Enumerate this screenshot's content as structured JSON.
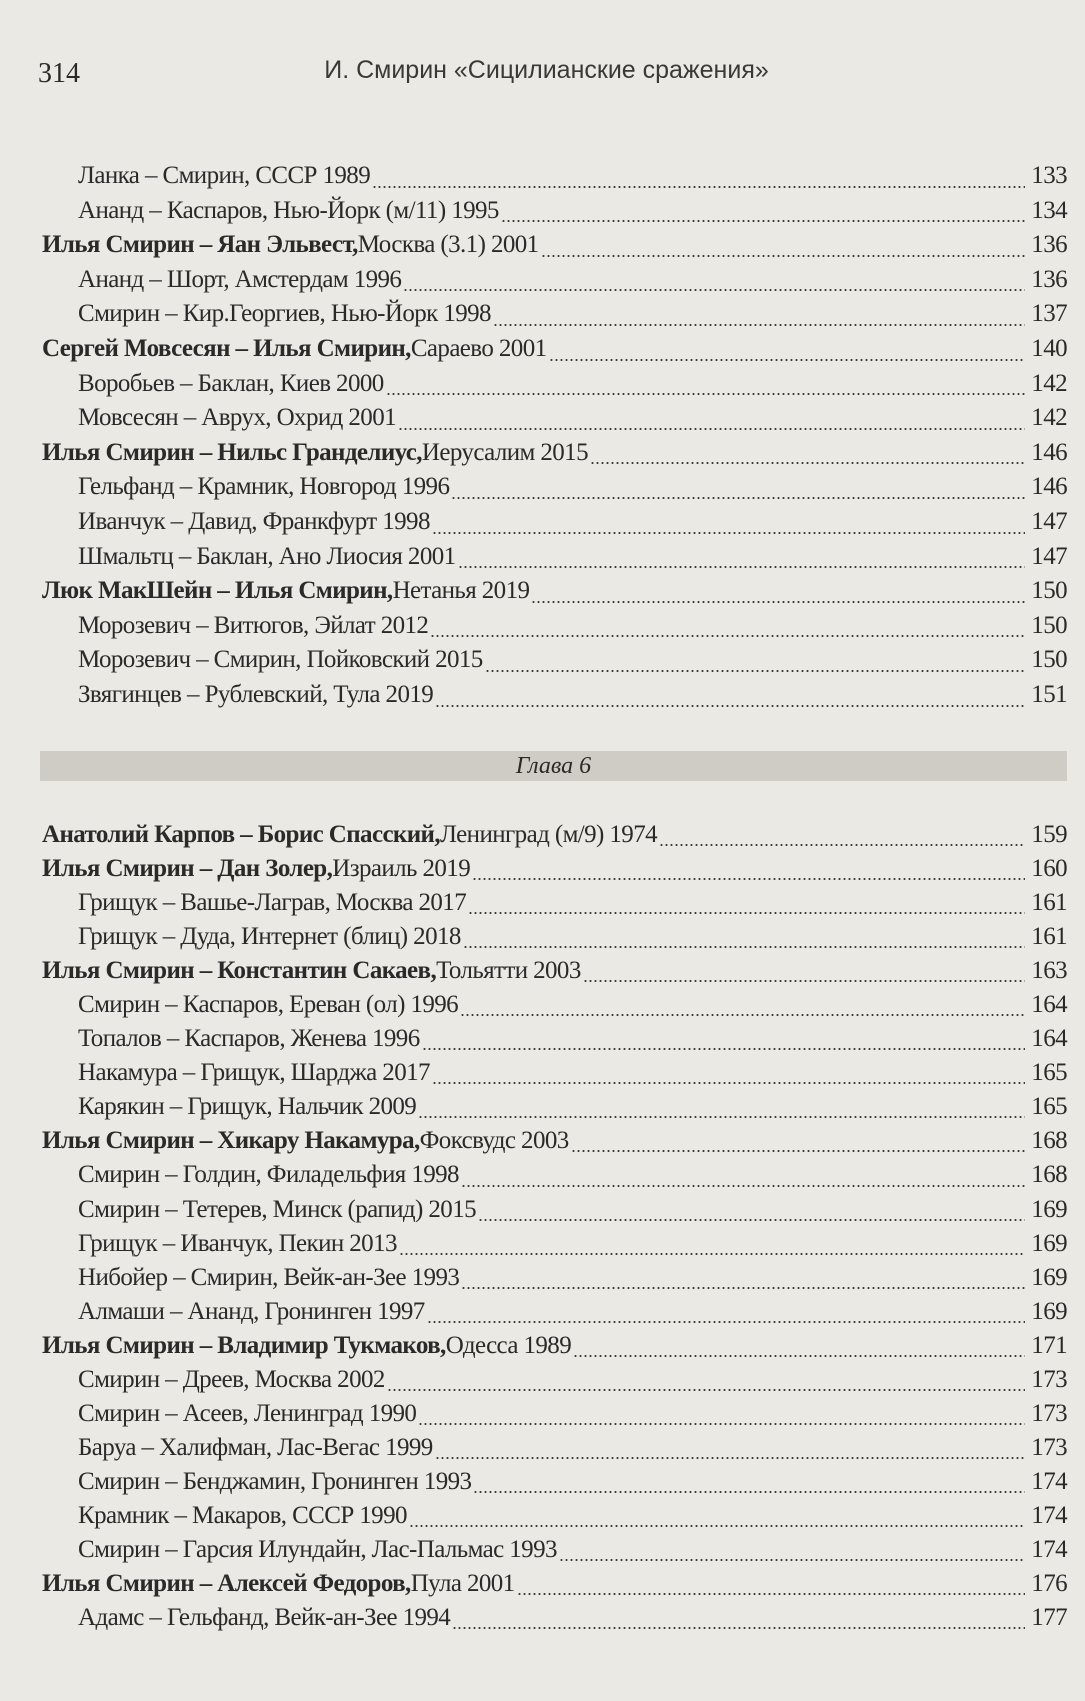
{
  "header": {
    "page_number": "314",
    "running_title": "И. Смирин «Сицилианские сражения»"
  },
  "block1": [
    {
      "text": "Ланка – Смирин, СССР 1989",
      "page": "133"
    },
    {
      "text": "Ананд – Каспаров, Нью-Йорк (м/11) 1995",
      "page": "134"
    },
    {
      "bold": "Илья Смирин – Яан Эльвест,",
      "text": " Москва (3.1) 2001",
      "page": "136"
    },
    {
      "text": "Ананд – Шорт, Амстердам 1996",
      "page": "136"
    },
    {
      "text": "Смирин – Кир.Георгиев, Нью-Йорк 1998",
      "page": "137"
    },
    {
      "bold": "Сергей Мовсесян – Илья Смирин,",
      "text": " Сараево 2001",
      "page": "140"
    },
    {
      "text": "Воробьев – Баклан, Киев 2000",
      "page": "142"
    },
    {
      "text": "Мовсесян – Аврух, Охрид 2001",
      "page": "142"
    },
    {
      "bold": "Илья Смирин – Нильс Гранделиус,",
      "text": " Иерусалим 2015",
      "page": "146"
    },
    {
      "text": "Гельфанд – Крамник, Новгород 1996",
      "page": "146"
    },
    {
      "text": "Иванчук – Давид, Франкфурт 1998",
      "page": "147"
    },
    {
      "text": "Шмальтц – Баклан, Ано Лиосия 2001",
      "page": "147"
    },
    {
      "bold": "Люк МакШейн – Илья Смирин,",
      "text": " Нетанья 2019",
      "page": "150"
    },
    {
      "text": "Морозевич – Витюгов, Эйлат 2012",
      "page": "150"
    },
    {
      "text": "Морозевич – Смирин, Пойковский 2015",
      "page": "150"
    },
    {
      "text": "Звягинцев – Рублевский, Тула 2019",
      "page": "151"
    }
  ],
  "chapter": "Глава 6",
  "block2": [
    {
      "bold": "Анатолий Карпов – Борис Спасский,",
      "text": " Ленинград (м/9) 1974",
      "page": "159"
    },
    {
      "bold": "Илья Смирин – Дан Золер,",
      "text": " Израиль 2019",
      "page": "160"
    },
    {
      "text": "Грищук – Вашье-Лаграв, Москва 2017",
      "page": "161"
    },
    {
      "text": "Грищук – Дуда, Интернет (блиц) 2018",
      "page": "161"
    },
    {
      "bold": "Илья Смирин – Константин Сакаев,",
      "text": " Тольятти 2003",
      "page": "163"
    },
    {
      "text": "Смирин – Каспаров, Ереван (ол) 1996",
      "page": "164"
    },
    {
      "text": "Топалов – Каспаров, Женева 1996",
      "page": "164"
    },
    {
      "text": "Накамура – Грищук, Шарджа 2017",
      "page": "165"
    },
    {
      "text": "Карякин – Грищук, Нальчик 2009",
      "page": "165"
    },
    {
      "bold": "Илья Смирин – Хикару Накамура,",
      "text": " Фоксвудс 2003",
      "page": "168"
    },
    {
      "text": "Смирин – Голдин, Филадельфия 1998",
      "page": "168"
    },
    {
      "text": "Смирин – Тетерев, Минск (рапид) 2015",
      "page": "169"
    },
    {
      "text": "Грищук – Иванчук, Пекин 2013",
      "page": "169"
    },
    {
      "text": "Нибойер – Смирин, Вейк-ан-Зее 1993",
      "page": "169"
    },
    {
      "text": "Алмаши – Ананд, Гронинген 1997",
      "page": "169"
    },
    {
      "bold": "Илья Смирин – Владимир Тукмаков,",
      "text": " Одесса 1989",
      "page": "171"
    },
    {
      "text": "Смирин – Дреев, Москва 2002",
      "page": "173"
    },
    {
      "text": "Смирин – Асеев, Ленинград 1990",
      "page": "173"
    },
    {
      "text": "Баруа – Халифман, Лас-Вегас 1999",
      "page": "173"
    },
    {
      "text": "Смирин – Бенджамин, Гронинген 1993",
      "page": "174"
    },
    {
      "text": "Крамник – Макаров, СССР 1990",
      "page": "174"
    },
    {
      "text": "Смирин – Гарсия Илундайн, Лас-Пальмас 1993",
      "page": "174"
    },
    {
      "bold": "Илья Смирин – Алексей Федоров,",
      "text": " Пула 2001",
      "page": "176"
    },
    {
      "text": "Адамс – Гельфанд, Вейк-ан-Зее 1994",
      "page": "177"
    }
  ]
}
